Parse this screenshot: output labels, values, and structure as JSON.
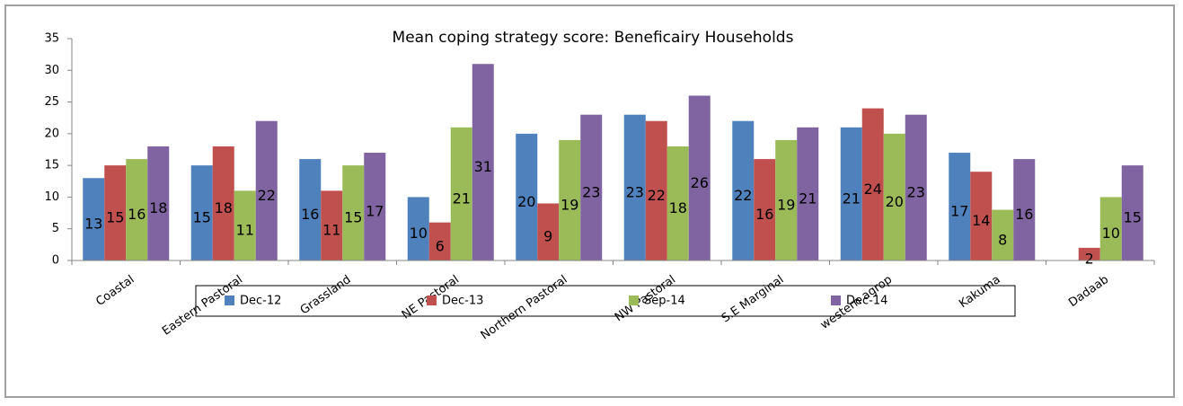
{
  "chart_data": {
    "type": "bar",
    "title": "Mean coping strategy score:  Beneficairy Households",
    "categories": [
      "Coastal",
      "Eastern Pastoral",
      "Grassland",
      "NE Pastoral",
      "Northern Pastoral",
      "NW Pastoral",
      "S.E Marginal",
      "western agrop",
      "Kakuma",
      "Dadaab"
    ],
    "series": [
      {
        "name": "Dec-12",
        "color": "#4f81bd",
        "values": [
          13,
          15,
          16,
          10,
          20,
          23,
          22,
          21,
          17,
          null
        ]
      },
      {
        "name": "Dec-13",
        "color": "#c0504d",
        "values": [
          15,
          18,
          11,
          6,
          9,
          22,
          16,
          24,
          14,
          2
        ]
      },
      {
        "name": "Sep-14",
        "color": "#9bbb59",
        "values": [
          16,
          11,
          15,
          21,
          19,
          18,
          19,
          20,
          8,
          10
        ]
      },
      {
        "name": "Dec-14",
        "color": "#8064a2",
        "values": [
          18,
          22,
          17,
          31,
          23,
          26,
          21,
          23,
          16,
          15
        ]
      }
    ],
    "ylim": [
      0,
      35
    ],
    "yticks": [
      0,
      5,
      10,
      15,
      20,
      25,
      30,
      35
    ],
    "legend": "bottom"
  }
}
